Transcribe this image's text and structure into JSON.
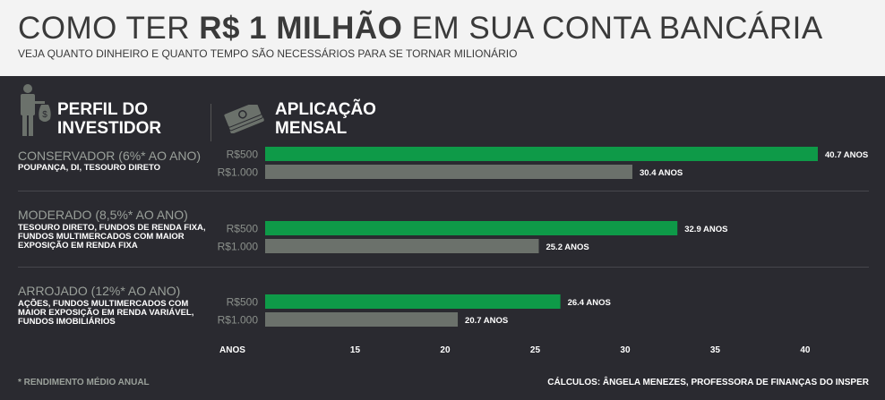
{
  "header": {
    "title_prefix": "COMO TER ",
    "title_bold": "R$ 1 MILHÃO",
    "title_suffix": " EM SUA CONTA BANCÁRIA",
    "subtitle": "VEJA QUANTO DINHEIRO E QUANTO TEMPO SÃO NECESSÁRIOS PARA SE TORNAR MILIONÁRIO"
  },
  "columns": {
    "profile_line1": "PERFIL DO",
    "profile_line2": "INVESTIDOR",
    "monthly_line1": "APLICAÇÃO",
    "monthly_line2": "MENSAL"
  },
  "icons": {
    "profile": "person-money-bag-icon",
    "monthly": "money-stack-icon"
  },
  "profiles": [
    {
      "name": "CONSERVADOR (6%* AO ANO)",
      "desc": "POUPANÇA, DI, TESOURO DIRETO"
    },
    {
      "name": "MODERADO (8,5%* AO ANO)",
      "desc": "TESOURO DIRETO, FUNDOS DE RENDA FIXA, FUNDOS MULTIMERCADOS COM MAIOR EXPOSIÇÃO EM RENDA FIXA"
    },
    {
      "name": "ARROJADO (12%* AO ANO)",
      "desc": "AÇÕES, FUNDOS MULTIMERCADOS COM MAIOR EXPOSIÇÃO EM RENDA VARIÁVEL, FUNDOS IMOBILIÁRIOS"
    }
  ],
  "colors": {
    "green": "#0e9a48",
    "gray": "#6b716b",
    "background": "#2a2a30",
    "header_bg": "#f3f3f3"
  },
  "chart_data": {
    "type": "bar",
    "orientation": "horizontal",
    "categories": [
      "CONSERVADOR (6%* AO ANO)",
      "MODERADO (8,5%* AO ANO)",
      "ARROJADO (12%* AO ANO)"
    ],
    "series": [
      {
        "name": "R$500",
        "values": [
          40.7,
          32.9,
          26.4
        ],
        "labels": [
          "40.7 ANOS",
          "32.9 ANOS",
          "26.4 ANOS"
        ],
        "color": "#0e9a48"
      },
      {
        "name": "R$1.000",
        "values": [
          30.4,
          25.2,
          20.7
        ],
        "labels": [
          "30.4 ANOS",
          "25.2 ANOS",
          "20.7 ANOS"
        ],
        "color": "#6b716b"
      }
    ],
    "xlabel": "ANOS",
    "xlim": [
      10,
      41
    ],
    "xticks": [
      15,
      20,
      25,
      30,
      35,
      40
    ]
  },
  "footer": {
    "footnote": "* RENDIMENTO MÉDIO ANUAL",
    "credit": "CÁLCULOS: ÂNGELA MENEZES, PROFESSORA DE FINANÇAS DO INSPER"
  }
}
